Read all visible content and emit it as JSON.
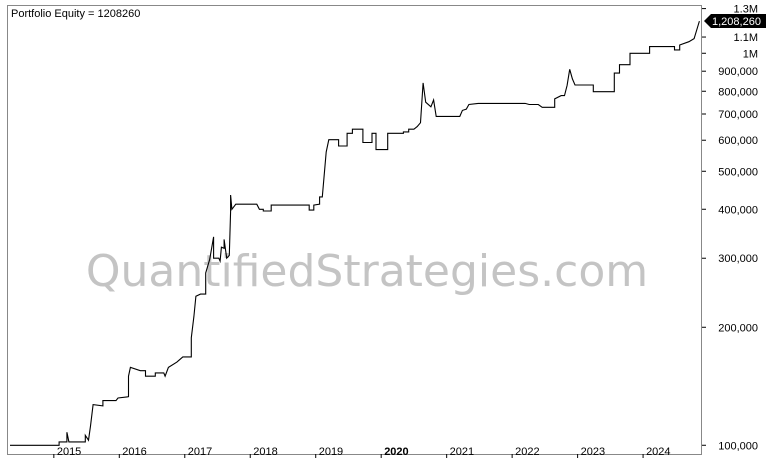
{
  "chart_data": {
    "type": "line",
    "title": "Portfolio Equity = 1208260",
    "watermark": "QuantifiedStrategies.com",
    "last_value_label": "1,208,260",
    "y_scale": "log",
    "ylim": [
      95000,
      1320000
    ],
    "xlim": [
      2014.3,
      2024.9
    ],
    "y_ticks": [
      {
        "value": 1300000,
        "label": "1.3M"
      },
      {
        "value": 1100000,
        "label": "1.1M"
      },
      {
        "value": 1000000,
        "label": "1M"
      },
      {
        "value": 900000,
        "label": "900,000"
      },
      {
        "value": 800000,
        "label": "800,000"
      },
      {
        "value": 700000,
        "label": "700,000"
      },
      {
        "value": 600000,
        "label": "600,000"
      },
      {
        "value": 500000,
        "label": "500,000"
      },
      {
        "value": 400000,
        "label": "400,000"
      },
      {
        "value": 300000,
        "label": "300,000"
      },
      {
        "value": 200000,
        "label": "200,000"
      },
      {
        "value": 100000,
        "label": "100,000"
      }
    ],
    "x_ticks": [
      {
        "value": 2015,
        "label": "2015",
        "bold": false
      },
      {
        "value": 2016,
        "label": "2016",
        "bold": false
      },
      {
        "value": 2017,
        "label": "2017",
        "bold": false
      },
      {
        "value": 2018,
        "label": "2018",
        "bold": false
      },
      {
        "value": 2019,
        "label": "2019",
        "bold": false
      },
      {
        "value": 2020,
        "label": "2020",
        "bold": true
      },
      {
        "value": 2021,
        "label": "2021",
        "bold": false
      },
      {
        "value": 2022,
        "label": "2022",
        "bold": false
      },
      {
        "value": 2023,
        "label": "2023",
        "bold": false
      },
      {
        "value": 2024,
        "label": "2024",
        "bold": false
      }
    ],
    "series": [
      {
        "line_color": "#000000",
        "points": [
          [
            2014.33,
            100000
          ],
          [
            2015.08,
            100000
          ],
          [
            2015.08,
            102000
          ],
          [
            2015.2,
            102000
          ],
          [
            2015.2,
            108000
          ],
          [
            2015.23,
            102000
          ],
          [
            2015.48,
            102000
          ],
          [
            2015.48,
            106000
          ],
          [
            2015.53,
            103000
          ],
          [
            2015.56,
            112000
          ],
          [
            2015.6,
            127000
          ],
          [
            2015.75,
            126000
          ],
          [
            2015.75,
            130000
          ],
          [
            2015.95,
            130000
          ],
          [
            2015.98,
            132000
          ],
          [
            2016.14,
            133000
          ],
          [
            2016.14,
            150000
          ],
          [
            2016.17,
            158000
          ],
          [
            2016.32,
            155000
          ],
          [
            2016.4,
            155000
          ],
          [
            2016.4,
            150000
          ],
          [
            2016.55,
            150000
          ],
          [
            2016.55,
            153000
          ],
          [
            2016.68,
            153000
          ],
          [
            2016.7,
            150000
          ],
          [
            2016.75,
            158000
          ],
          [
            2016.88,
            163000
          ],
          [
            2016.97,
            168000
          ],
          [
            2017.1,
            168000
          ],
          [
            2017.1,
            188000
          ],
          [
            2017.14,
            213000
          ],
          [
            2017.17,
            240000
          ],
          [
            2017.24,
            243000
          ],
          [
            2017.32,
            243000
          ],
          [
            2017.32,
            275000
          ],
          [
            2017.38,
            298000
          ],
          [
            2017.44,
            340000
          ],
          [
            2017.44,
            300000
          ],
          [
            2017.52,
            300000
          ],
          [
            2017.54,
            295000
          ],
          [
            2017.56,
            320000
          ],
          [
            2017.6,
            318000
          ],
          [
            2017.6,
            335000
          ],
          [
            2017.64,
            300000
          ],
          [
            2017.68,
            305000
          ],
          [
            2017.7,
            395000
          ],
          [
            2017.7,
            435000
          ],
          [
            2017.72,
            400000
          ],
          [
            2017.78,
            412000
          ],
          [
            2018.1,
            412000
          ],
          [
            2018.14,
            400000
          ],
          [
            2018.2,
            400000
          ],
          [
            2018.2,
            396000
          ],
          [
            2018.32,
            396000
          ],
          [
            2018.32,
            410000
          ],
          [
            2018.9,
            410000
          ],
          [
            2018.9,
            398000
          ],
          [
            2018.97,
            398000
          ],
          [
            2018.97,
            410000
          ],
          [
            2019.06,
            412000
          ],
          [
            2019.06,
            430000
          ],
          [
            2019.1,
            430000
          ],
          [
            2019.16,
            560000
          ],
          [
            2019.2,
            602000
          ],
          [
            2019.35,
            602000
          ],
          [
            2019.35,
            580000
          ],
          [
            2019.48,
            580000
          ],
          [
            2019.48,
            625000
          ],
          [
            2019.56,
            625000
          ],
          [
            2019.56,
            640000
          ],
          [
            2019.72,
            640000
          ],
          [
            2019.72,
            592000
          ],
          [
            2019.86,
            592000
          ],
          [
            2019.86,
            625000
          ],
          [
            2019.92,
            625000
          ],
          [
            2019.92,
            568000
          ],
          [
            2020.1,
            568000
          ],
          [
            2020.1,
            625000
          ],
          [
            2020.34,
            625000
          ],
          [
            2020.34,
            630000
          ],
          [
            2020.42,
            630000
          ],
          [
            2020.42,
            640000
          ],
          [
            2020.5,
            640000
          ],
          [
            2020.55,
            650000
          ],
          [
            2020.6,
            665000
          ],
          [
            2020.64,
            840000
          ],
          [
            2020.68,
            750000
          ],
          [
            2020.76,
            730000
          ],
          [
            2020.8,
            760000
          ],
          [
            2020.84,
            690000
          ],
          [
            2021.2,
            690000
          ],
          [
            2021.24,
            715000
          ],
          [
            2021.3,
            720000
          ],
          [
            2021.34,
            740000
          ],
          [
            2021.48,
            745000
          ],
          [
            2021.6,
            745000
          ],
          [
            2022.2,
            745000
          ],
          [
            2022.26,
            740000
          ],
          [
            2022.4,
            740000
          ],
          [
            2022.46,
            728000
          ],
          [
            2022.65,
            728000
          ],
          [
            2022.65,
            765000
          ],
          [
            2022.75,
            780000
          ],
          [
            2022.8,
            780000
          ],
          [
            2022.84,
            828000
          ],
          [
            2022.88,
            910000
          ],
          [
            2022.92,
            860000
          ],
          [
            2022.96,
            830000
          ],
          [
            2023.24,
            830000
          ],
          [
            2023.24,
            798000
          ],
          [
            2023.56,
            798000
          ],
          [
            2023.56,
            890000
          ],
          [
            2023.64,
            890000
          ],
          [
            2023.64,
            935000
          ],
          [
            2023.8,
            935000
          ],
          [
            2023.8,
            1000000
          ],
          [
            2024.1,
            1000000
          ],
          [
            2024.1,
            1040000
          ],
          [
            2024.48,
            1040000
          ],
          [
            2024.48,
            1020000
          ],
          [
            2024.56,
            1020000
          ],
          [
            2024.56,
            1050000
          ],
          [
            2024.7,
            1070000
          ],
          [
            2024.78,
            1090000
          ],
          [
            2024.86,
            1208260
          ]
        ]
      }
    ]
  }
}
